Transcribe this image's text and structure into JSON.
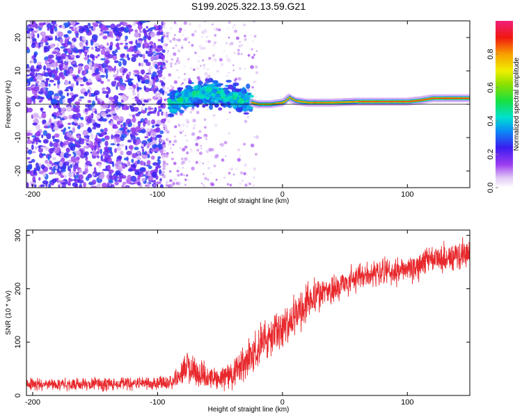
{
  "title": "S199.2025.322.13.59.G21",
  "chart_data": [
    {
      "type": "heatmap",
      "title": "S199.2025.322.13.59.G21",
      "xlabel": "Height of straight line (km)",
      "ylabel": "Frequency (Hz)",
      "xlim": [
        -205,
        150
      ],
      "ylim": [
        -25,
        25
      ],
      "xticks": [
        -200,
        -100,
        0,
        100
      ],
      "yticks": [
        -20,
        -10,
        0,
        10,
        20
      ],
      "description_series": [
        {
          "name": "noise-region",
          "x_range": [
            -205,
            -95
          ],
          "y_range": [
            -25,
            25
          ],
          "amplitude_range": [
            0.05,
            0.3
          ]
        },
        {
          "name": "scattered-region",
          "x_range": [
            -95,
            -20
          ],
          "y_range": [
            -25,
            25
          ],
          "amplitude_range": [
            0.02,
            0.15
          ]
        },
        {
          "name": "signal-blob",
          "x_range": [
            -90,
            -25
          ],
          "center_y": [
            0,
            5
          ],
          "amplitude_range": [
            0.2,
            0.5
          ]
        },
        {
          "name": "signal-line",
          "x_range": [
            -25,
            150
          ],
          "center_y": [
            0,
            2
          ],
          "amplitude_range": [
            0.5,
            0.95
          ]
        }
      ],
      "signal_trace": {
        "x": [
          -90,
          -80,
          -70,
          -60,
          -50,
          -40,
          -30,
          -20,
          -10,
          0,
          5,
          10,
          20,
          40,
          60,
          80,
          100,
          110,
          120,
          130,
          140,
          150
        ],
        "y": [
          0,
          1.5,
          3,
          3.5,
          3,
          2,
          1,
          0,
          0,
          0.5,
          2,
          1,
          0.5,
          0.5,
          0.8,
          0.8,
          0.8,
          1.2,
          1.8,
          1.8,
          1.8,
          1.8
        ]
      },
      "colorbar": {
        "label": "Normalized spectral amplitude",
        "range": [
          0,
          1
        ],
        "ticks": [
          "0.0",
          "0.2",
          "0.4",
          "0.6",
          "0.8"
        ],
        "tick_values": [
          0,
          0.2,
          0.4,
          0.6,
          0.8
        ]
      }
    },
    {
      "type": "line",
      "xlabel": "Height of straight line (km)",
      "ylabel": "SNR (10 * v/v)",
      "xlim": [
        -205,
        150
      ],
      "ylim": [
        0,
        310
      ],
      "xticks": [
        -200,
        -100,
        0,
        100
      ],
      "yticks": [
        0,
        100,
        200,
        300
      ],
      "series": [
        {
          "name": "SNR",
          "color": "#e8282c",
          "x": [
            -205,
            -180,
            -150,
            -120,
            -100,
            -90,
            -82,
            -78,
            -70,
            -60,
            -50,
            -40,
            -30,
            -20,
            -10,
            0,
            10,
            20,
            30,
            40,
            50,
            60,
            70,
            80,
            90,
            100,
            110,
            120,
            130,
            140,
            150
          ],
          "y": [
            20,
            22,
            22,
            22,
            22,
            25,
            35,
            55,
            45,
            35,
            30,
            40,
            60,
            90,
            110,
            130,
            150,
            175,
            190,
            200,
            210,
            220,
            225,
            230,
            230,
            235,
            245,
            255,
            260,
            262,
            265
          ],
          "noise_amplitude": [
            12,
            12,
            12,
            12,
            12,
            14,
            20,
            30,
            28,
            22,
            20,
            28,
            35,
            40,
            40,
            40,
            38,
            35,
            30,
            28,
            25,
            25,
            25,
            25,
            25,
            25,
            25,
            25,
            25,
            25,
            25
          ]
        }
      ]
    }
  ],
  "colors": {
    "snr_line": "#e8282c",
    "axis": "#000000",
    "zero_line": "#000000"
  }
}
